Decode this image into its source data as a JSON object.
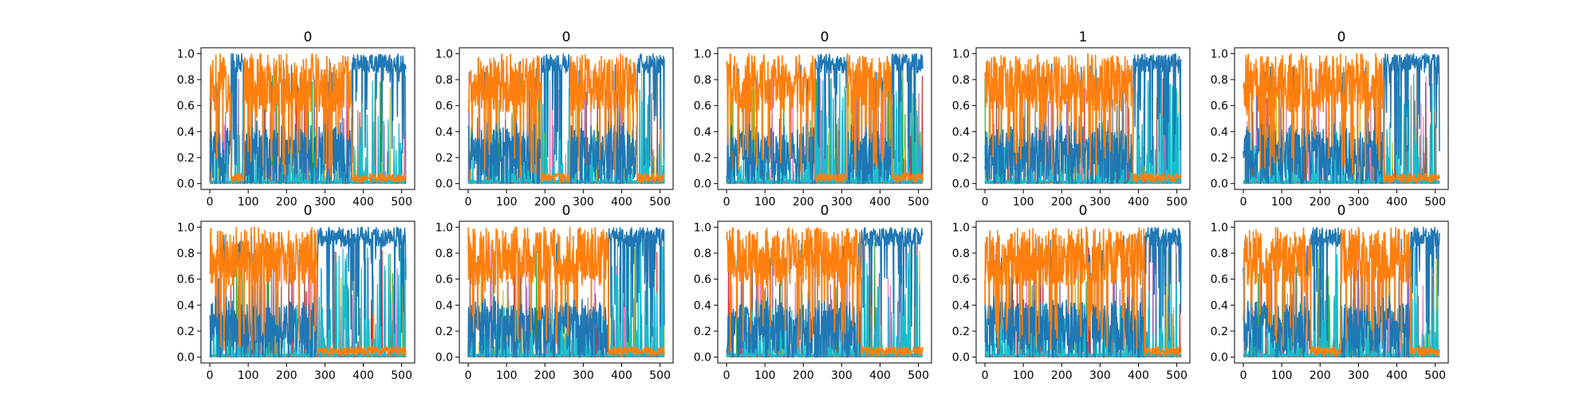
{
  "chart_data": {
    "type": "line",
    "layout": "grid",
    "rows": 2,
    "cols": 5,
    "x_range": [
      0,
      511
    ],
    "ylim": [
      0.0,
      1.0
    ],
    "xticks": [
      0,
      100,
      200,
      300,
      400,
      500
    ],
    "yticks": [
      0.0,
      0.2,
      0.4,
      0.6,
      0.8,
      1.0
    ],
    "xtick_labels": [
      "0",
      "100",
      "200",
      "300",
      "400",
      "500"
    ],
    "ytick_labels": [
      "0.0",
      "0.2",
      "0.4",
      "0.6",
      "0.8",
      "1.0"
    ],
    "grid": false,
    "legend": "none",
    "series_colors": {
      "background_class": "#1f77b4",
      "dominant_class": "#ff7f0e",
      "secondary": "#17becf",
      "minor": [
        "#2ca02c",
        "#d62728",
        "#9467bd",
        "#e377c2",
        "#bcbd22",
        "#8c564b",
        "#7f7f7f"
      ]
    },
    "panels": [
      {
        "title": "0",
        "orange_segments": [
          [
            0,
            55
          ],
          [
            90,
            370
          ]
        ]
      },
      {
        "title": "0",
        "orange_segments": [
          [
            0,
            190
          ],
          [
            265,
            440
          ]
        ]
      },
      {
        "title": "0",
        "orange_segments": [
          [
            0,
            230
          ],
          [
            315,
            430
          ]
        ]
      },
      {
        "title": "1",
        "orange_segments": [
          [
            0,
            385
          ]
        ]
      },
      {
        "title": "0",
        "orange_segments": [
          [
            0,
            365
          ]
        ]
      },
      {
        "title": "0",
        "orange_segments": [
          [
            0,
            280
          ]
        ]
      },
      {
        "title": "0",
        "orange_segments": [
          [
            0,
            365
          ]
        ]
      },
      {
        "title": "0",
        "orange_segments": [
          [
            0,
            350
          ]
        ]
      },
      {
        "title": "0",
        "orange_segments": [
          [
            0,
            415
          ]
        ]
      },
      {
        "title": "0",
        "orange_segments": [
          [
            0,
            175
          ],
          [
            255,
            435
          ]
        ]
      }
    ]
  }
}
